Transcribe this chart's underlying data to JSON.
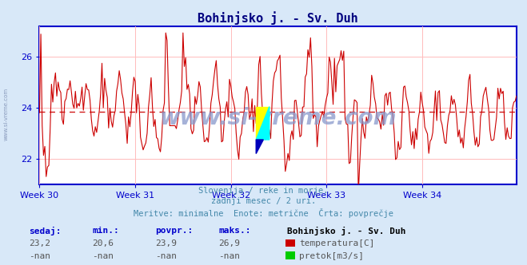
{
  "title": "Bohinjsko j. - Sv. Duh",
  "title_color": "#000080",
  "bg_color": "#d8e8f8",
  "plot_bg_color": "#ffffff",
  "line_color": "#cc0000",
  "avg_line_color": "#cc0000",
  "avg_value": 23.85,
  "y_axis_min": 21.0,
  "y_axis_max": 27.2,
  "y_ticks": [
    22,
    24,
    26
  ],
  "x_tick_labels": [
    "Week 30",
    "Week 31",
    "Week 32",
    "Week 33",
    "Week 34"
  ],
  "subtitle1": "Slovenija / reke in morje.",
  "subtitle2": "zadnji mesec / 2 uri.",
  "subtitle3": "Meritve: minimalne  Enote: metrične  Črta: povprečje",
  "subtitle_color": "#4488aa",
  "table_headers": [
    "sedaj:",
    "min.:",
    "povpr.:",
    "maks.:"
  ],
  "table_row1": [
    "23,2",
    "20,6",
    "23,9",
    "26,9"
  ],
  "table_row2": [
    "-nan",
    "-nan",
    "-nan",
    "-nan"
  ],
  "table_header_color": "#0000cc",
  "table_value_color": "#555555",
  "legend_station": "Bohinjsko j. - Sv. Duh",
  "legend_temp_label": "temperatura[C]",
  "legend_flow_label": "pretok[m3/s]",
  "legend_temp_color": "#cc0000",
  "legend_flow_color": "#00cc00",
  "watermark": "www.si-vreme.com",
  "watermark_color": "#8899cc",
  "grid_color": "#ffbbbb",
  "axis_color": "#0000cc",
  "left_label": "www.si-vreme.com",
  "left_label_color": "#8899bb",
  "num_points": 360
}
